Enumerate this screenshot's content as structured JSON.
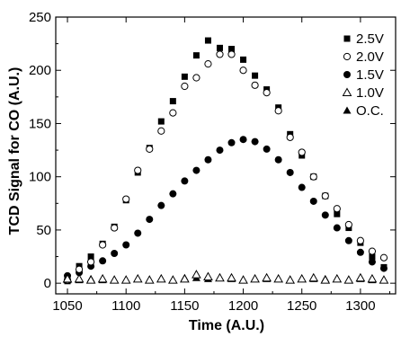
{
  "chart_data": {
    "type": "scatter",
    "title": "",
    "xlabel": "Time (A.U.)",
    "ylabel": "TCD Signal for CO (A.U.)",
    "xlim": [
      1040,
      1330
    ],
    "ylim": [
      -10,
      250
    ],
    "xticks": [
      1050,
      1100,
      1150,
      1200,
      1250,
      1300
    ],
    "xtick_labels": [
      "1050",
      "1100",
      "1150",
      "1200",
      "1250",
      "1300"
    ],
    "yticks": [
      0,
      50,
      100,
      150,
      200,
      250
    ],
    "ytick_labels": [
      "0",
      "50",
      "100",
      "150",
      "200",
      "250"
    ],
    "grid": false,
    "legend_position": "top-right",
    "series": [
      {
        "name": "2.5V",
        "marker": "filled-square",
        "color": "#000000",
        "x": [
          1050,
          1060,
          1070,
          1080,
          1090,
          1100,
          1110,
          1120,
          1130,
          1140,
          1150,
          1160,
          1170,
          1180,
          1190,
          1200,
          1210,
          1220,
          1230,
          1240,
          1250,
          1260,
          1270,
          1280,
          1290,
          1300,
          1310,
          1320
        ],
        "values": [
          2,
          16,
          25,
          37,
          53,
          78,
          104,
          127,
          152,
          171,
          194,
          214,
          228,
          221,
          220,
          210,
          195,
          182,
          165,
          140,
          120,
          100,
          82,
          65,
          52,
          38,
          25,
          15
        ]
      },
      {
        "name": "2.0V",
        "marker": "open-circle",
        "color": "#000000",
        "x": [
          1050,
          1060,
          1070,
          1080,
          1090,
          1100,
          1110,
          1120,
          1130,
          1140,
          1150,
          1160,
          1170,
          1180,
          1190,
          1200,
          1210,
          1220,
          1230,
          1240,
          1250,
          1260,
          1270,
          1280,
          1290,
          1300,
          1310,
          1320
        ],
        "values": [
          3,
          13,
          20,
          36,
          52,
          79,
          106,
          126,
          143,
          160,
          185,
          193,
          206,
          215,
          215,
          200,
          186,
          179,
          162,
          137,
          123,
          100,
          82,
          70,
          55,
          40,
          30,
          24
        ]
      },
      {
        "name": "1.5V",
        "marker": "filled-circle",
        "color": "#000000",
        "x": [
          1050,
          1060,
          1070,
          1080,
          1090,
          1100,
          1110,
          1120,
          1130,
          1140,
          1150,
          1160,
          1170,
          1180,
          1190,
          1200,
          1210,
          1220,
          1230,
          1240,
          1250,
          1260,
          1270,
          1280,
          1290,
          1300,
          1310,
          1320
        ],
        "values": [
          7,
          10,
          16,
          21,
          28,
          36,
          47,
          60,
          73,
          84,
          96,
          106,
          116,
          125,
          132,
          135,
          133,
          126,
          116,
          104,
          90,
          77,
          64,
          52,
          40,
          29,
          20,
          14
        ]
      },
      {
        "name": "1.0V",
        "marker": "open-triangle",
        "color": "#000000",
        "x": [
          1050,
          1060,
          1070,
          1080,
          1090,
          1100,
          1110,
          1120,
          1130,
          1140,
          1150,
          1160,
          1170,
          1180,
          1190,
          1200,
          1210,
          1220,
          1230,
          1240,
          1250,
          1260,
          1270,
          1280,
          1290,
          1300,
          1310,
          1320
        ],
        "values": [
          4,
          4,
          3,
          4,
          3,
          3,
          4,
          3,
          4,
          3,
          4,
          8,
          6,
          5,
          5,
          3,
          4,
          5,
          4,
          3,
          4,
          5,
          3,
          4,
          3,
          5,
          4,
          3
        ]
      },
      {
        "name": "O.C.",
        "marker": "filled-triangle",
        "color": "#000000",
        "x": [
          1050,
          1060,
          1070,
          1080,
          1090,
          1100,
          1110,
          1120,
          1130,
          1140,
          1150,
          1160,
          1170,
          1180,
          1190,
          1200,
          1210,
          1220,
          1230,
          1240,
          1250,
          1260,
          1270,
          1280,
          1290,
          1300,
          1310,
          1320
        ],
        "values": [
          3,
          3,
          4,
          3,
          3,
          3,
          4,
          3,
          4,
          3,
          5,
          5,
          4,
          5,
          4,
          3,
          4,
          4,
          4,
          3,
          4,
          4,
          4,
          4,
          3,
          4,
          3,
          3
        ]
      }
    ]
  }
}
